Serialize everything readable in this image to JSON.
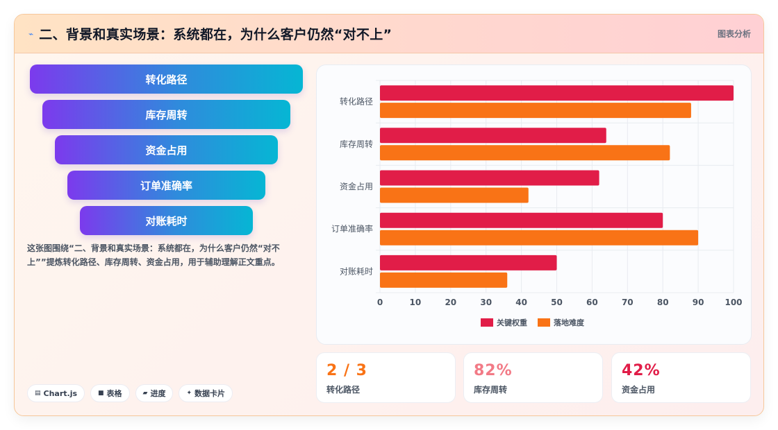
{
  "header": {
    "title": "二、背景和真实场景：系统都在，为什么客户仍然“对不上”",
    "tag": "图表分析",
    "icon": "bolt-icon"
  },
  "funnel": {
    "items": [
      "转化路径",
      "库存周转",
      "资金占用",
      "订单准确率",
      "对账耗时"
    ]
  },
  "caption": "这张图围绕“二、背景和真实场景：系统都在，为什么客户仍然“对不上””提炼转化路径、库存周转、资金占用，用于辅助理解正文重点。",
  "chips": [
    {
      "icon": "▤",
      "label": "Chart.js"
    },
    {
      "icon": "■",
      "label": "表格"
    },
    {
      "icon": "▰",
      "label": "进度"
    },
    {
      "icon": "✦",
      "label": "数据卡片"
    }
  ],
  "stats": [
    {
      "value": "2 / 3",
      "label": "转化路径",
      "color": "#f97316"
    },
    {
      "value": "82%",
      "label": "库存周转",
      "color": "#f27a86"
    },
    {
      "value": "42%",
      "label": "资金占用",
      "color": "#e11d48"
    }
  ],
  "chart_data": {
    "type": "bar",
    "orientation": "horizontal",
    "categories": [
      "转化路径",
      "库存周转",
      "资金占用",
      "订单准确率",
      "对账耗时"
    ],
    "series": [
      {
        "name": "关键权重",
        "values": [
          100,
          64,
          62,
          80,
          50
        ],
        "color": "#e11d48"
      },
      {
        "name": "落地难度",
        "values": [
          88,
          82,
          42,
          90,
          36
        ],
        "color": "#f97316"
      }
    ],
    "xlim": [
      0,
      100
    ],
    "xticks": [
      0,
      10,
      20,
      30,
      40,
      50,
      60,
      70,
      80,
      90,
      100
    ],
    "grid": true,
    "legend": "bottom"
  }
}
